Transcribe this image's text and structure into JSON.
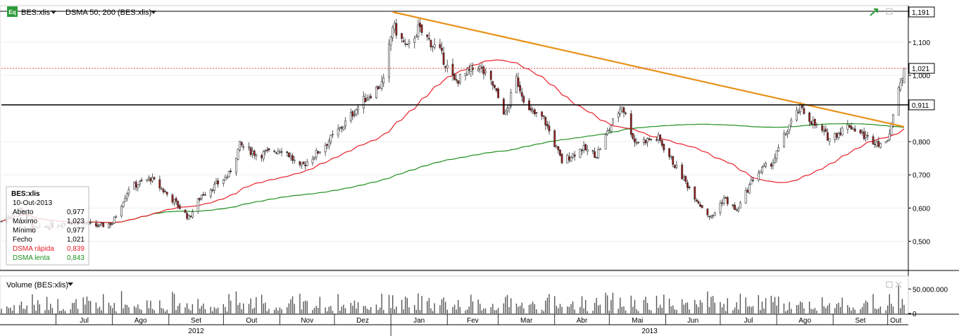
{
  "header": {
    "symbol_label": "BES:xlis",
    "indicator_label": "DSMA 50; 200 (BES:xlis)",
    "logo_text": "Eq"
  },
  "volume_header": {
    "label": "Volume (BES:xlis)"
  },
  "info_box": {
    "title": "BES:xlis",
    "date": "10-Out-2013",
    "rows": [
      {
        "label": "Aberto",
        "value": "0,977",
        "color": "#000000"
      },
      {
        "label": "Máximo",
        "value": "1,023",
        "color": "#000000"
      },
      {
        "label": "Mínimo",
        "value": "0,977",
        "color": "#000000"
      },
      {
        "label": "Fecho",
        "value": "1,021",
        "color": "#000000"
      },
      {
        "label": "DSMA rápida",
        "value": "0,839",
        "color": "#e8202a"
      },
      {
        "label": "DSMA lenta",
        "value": "0,843",
        "color": "#1f8f1f"
      }
    ]
  },
  "price_axis": {
    "ticks": [
      "1,100",
      "1,000",
      "0,800",
      "0,700",
      "0,600",
      "0,500"
    ],
    "tick_values": [
      1.1,
      1.0,
      0.8,
      0.7,
      0.6,
      0.5
    ],
    "markers": [
      {
        "label": "1,191",
        "value": 1.191
      },
      {
        "label": "1,021",
        "value": 1.021
      },
      {
        "label": "0,911",
        "value": 0.911
      }
    ],
    "range": [
      0.416,
      1.19
    ]
  },
  "volume_axis": {
    "ticks": [
      "50.000.000",
      "0"
    ],
    "tick_values": [
      50000000,
      0
    ],
    "range": [
      0,
      72000000
    ]
  },
  "time_axis": {
    "months": [
      "Jul",
      "Ago",
      "Set",
      "Out",
      "Nov",
      "Dez",
      "Jan",
      "Fev",
      "Mar",
      "Abr",
      "Mai",
      "Jun",
      "Jul",
      "Ago",
      "Set",
      "Out"
    ],
    "years": [
      "2012",
      "2013"
    ]
  },
  "colors": {
    "up": "#ffffff",
    "down": "#9b1b1b",
    "fast_ma": "#e8202a",
    "slow_ma": "#1f8f1f",
    "trendline": "#e8921a",
    "support": "#000000",
    "last_price": "#d43a3a",
    "volume": "#555555"
  },
  "chart_data": {
    "type": "candlestick",
    "series": [
      {
        "name": "BES:xlis",
        "kind": "ohlc"
      },
      {
        "name": "DSMA rápida",
        "kind": "line",
        "period": 50
      },
      {
        "name": "DSMA lenta",
        "kind": "line",
        "period": 200
      },
      {
        "name": "Volume (BES:xlis)",
        "kind": "bar"
      }
    ],
    "x_range": [
      "2012-06-01",
      "2013-10-10"
    ],
    "y_range": [
      0.416,
      1.191
    ],
    "close_anchors": [
      [
        "2012-06-01",
        0.56
      ],
      [
        "2012-06-12",
        0.6
      ],
      [
        "2012-06-18",
        0.535
      ],
      [
        "2012-07-10",
        0.56
      ],
      [
        "2012-07-25",
        0.545
      ],
      [
        "2012-08-01",
        0.555
      ],
      [
        "2012-08-10",
        0.66
      ],
      [
        "2012-08-22",
        0.69
      ],
      [
        "2012-09-04",
        0.62
      ],
      [
        "2012-09-12",
        0.57
      ],
      [
        "2012-09-19",
        0.64
      ],
      [
        "2012-09-27",
        0.67
      ],
      [
        "2012-10-04",
        0.7
      ],
      [
        "2012-10-10",
        0.79
      ],
      [
        "2012-10-20",
        0.76
      ],
      [
        "2012-11-03",
        0.78
      ],
      [
        "2012-11-12",
        0.72
      ],
      [
        "2012-11-24",
        0.78
      ],
      [
        "2012-12-06",
        0.85
      ],
      [
        "2012-12-16",
        0.92
      ],
      [
        "2012-12-28",
        0.98
      ],
      [
        "2013-01-02",
        1.15
      ],
      [
        "2013-01-10",
        1.08
      ],
      [
        "2013-01-16",
        1.14
      ],
      [
        "2013-01-28",
        1.07
      ],
      [
        "2013-02-05",
        0.98
      ],
      [
        "2013-02-18",
        1.03
      ],
      [
        "2013-02-26",
        0.97
      ],
      [
        "2013-03-05",
        0.88
      ],
      [
        "2013-03-11",
        0.99
      ],
      [
        "2013-03-18",
        0.89
      ],
      [
        "2013-03-26",
        0.87
      ],
      [
        "2013-04-05",
        0.74
      ],
      [
        "2013-04-16",
        0.78
      ],
      [
        "2013-04-24",
        0.76
      ],
      [
        "2013-05-02",
        0.85
      ],
      [
        "2013-05-08",
        0.91
      ],
      [
        "2013-05-15",
        0.8
      ],
      [
        "2013-05-28",
        0.81
      ],
      [
        "2013-06-07",
        0.72
      ],
      [
        "2013-06-20",
        0.61
      ],
      [
        "2013-06-26",
        0.57
      ],
      [
        "2013-07-03",
        0.63
      ],
      [
        "2013-07-10",
        0.59
      ],
      [
        "2013-07-20",
        0.7
      ],
      [
        "2013-07-30",
        0.74
      ],
      [
        "2013-08-08",
        0.85
      ],
      [
        "2013-08-14",
        0.9
      ],
      [
        "2013-08-22",
        0.85
      ],
      [
        "2013-08-30",
        0.81
      ],
      [
        "2013-09-10",
        0.85
      ],
      [
        "2013-09-20",
        0.81
      ],
      [
        "2013-09-30",
        0.79
      ],
      [
        "2013-10-04",
        0.88
      ],
      [
        "2013-10-10",
        1.021
      ]
    ],
    "last_bar": {
      "date": "2013-10-10",
      "open": 0.977,
      "high": 1.023,
      "low": 0.977,
      "close": 1.021
    },
    "fast_ma_last": 0.839,
    "slow_ma_last": 0.843,
    "trendline": [
      [
        "2013-01-02",
        1.191
      ],
      [
        "2013-10-10",
        0.845
      ]
    ],
    "support_level": 0.911,
    "last_price": 1.021,
    "volume_range": [
      0,
      72000000
    ]
  }
}
